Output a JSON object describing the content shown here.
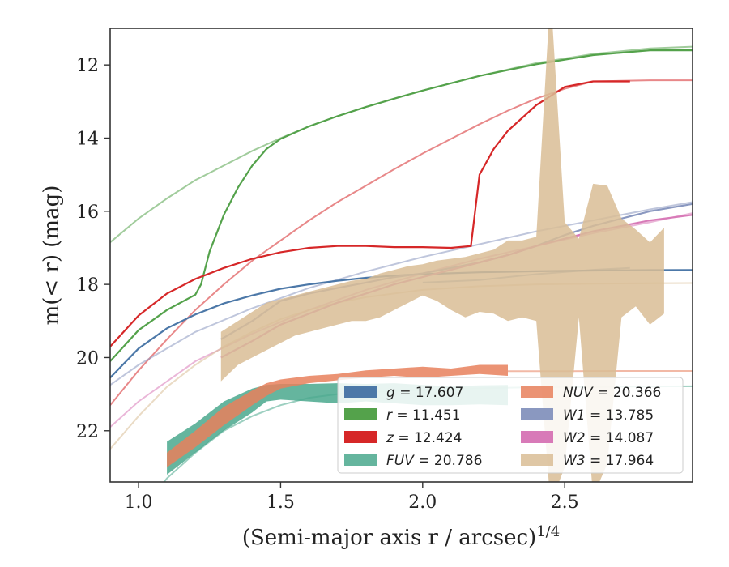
{
  "chart_data": {
    "type": "line",
    "xlabel": "(Semi-major axis r / arcsec)",
    "xlabel_power": "1/4",
    "ylabel": "m(< r) (mag)",
    "xlim": [
      0.9,
      2.95
    ],
    "ylim": [
      23.4,
      11.0
    ],
    "y_inverted": true,
    "x_ticks": [
      1.0,
      1.5,
      2.0,
      2.5
    ],
    "x_tick_labels": [
      "1.0",
      "1.5",
      "2.0",
      "2.5"
    ],
    "y_ticks": [
      12,
      14,
      16,
      18,
      20,
      22
    ],
    "y_tick_labels": [
      "12",
      "14",
      "16",
      "18",
      "20",
      "22"
    ],
    "legend_position": "lower-right",
    "grid": false,
    "series": [
      {
        "name": "g = 17.607",
        "legend_italic": "g",
        "legend_value": "17.607",
        "color": "#4c78a8",
        "kind": "line",
        "x": [
          0.9,
          1.0,
          1.1,
          1.2,
          1.3,
          1.4,
          1.5,
          1.6,
          1.7,
          1.8,
          1.9,
          2.0,
          2.2,
          2.4,
          2.6,
          2.8,
          2.95
        ],
        "y": [
          20.55,
          19.75,
          19.2,
          18.82,
          18.52,
          18.3,
          18.12,
          18.0,
          17.9,
          17.82,
          17.76,
          17.72,
          17.67,
          17.64,
          17.62,
          17.61,
          17.607
        ],
        "model_x": [
          2.0,
          2.2,
          2.4,
          2.6,
          2.73
        ],
        "model_y": [
          17.95,
          17.88,
          17.72,
          17.6,
          17.55
        ]
      },
      {
        "name": "r = 11.451",
        "legend_italic": "r",
        "legend_value": "11.451",
        "color": "#54a24b",
        "kind": "line",
        "x": [
          0.9,
          1.0,
          1.1,
          1.2,
          1.22,
          1.25,
          1.3,
          1.35,
          1.4,
          1.45,
          1.5,
          1.6,
          1.7,
          1.8,
          1.9,
          2.0,
          2.2,
          2.4,
          2.6,
          2.8,
          2.95
        ],
        "y": [
          20.1,
          19.25,
          18.7,
          18.28,
          18.0,
          17.1,
          16.1,
          15.35,
          14.75,
          14.3,
          14.02,
          13.68,
          13.4,
          13.15,
          12.92,
          12.7,
          12.3,
          11.98,
          11.73,
          11.6,
          11.6
        ],
        "model_x": [
          0.9,
          1.0,
          1.1,
          1.2,
          1.3,
          1.4,
          1.5,
          1.6,
          1.7,
          1.8,
          2.0,
          2.2,
          2.4,
          2.6,
          2.8,
          2.95
        ],
        "model_y": [
          16.85,
          16.2,
          15.65,
          15.15,
          14.75,
          14.35,
          14.0,
          13.68,
          13.4,
          13.15,
          12.7,
          12.3,
          11.95,
          11.7,
          11.55,
          11.5
        ]
      },
      {
        "name": "z = 12.424",
        "legend_italic": "z",
        "legend_value": "12.424",
        "color": "#d62728",
        "kind": "line",
        "x": [
          0.9,
          1.0,
          1.1,
          1.2,
          1.3,
          1.4,
          1.5,
          1.6,
          1.7,
          1.8,
          1.9,
          2.0,
          2.1,
          2.17,
          2.2,
          2.25,
          2.3,
          2.4,
          2.5,
          2.6,
          2.73
        ],
        "y": [
          19.7,
          18.85,
          18.25,
          17.85,
          17.55,
          17.3,
          17.12,
          17.0,
          16.95,
          16.95,
          16.98,
          16.98,
          17.0,
          16.95,
          15.0,
          14.3,
          13.8,
          13.1,
          12.6,
          12.45,
          12.45
        ],
        "model_x": [
          0.9,
          1.0,
          1.1,
          1.2,
          1.3,
          1.4,
          1.5,
          1.6,
          1.7,
          1.8,
          1.9,
          2.0,
          2.1,
          2.2,
          2.3,
          2.4,
          2.5,
          2.6,
          2.8,
          2.95
        ],
        "model_y": [
          21.3,
          20.35,
          19.5,
          18.7,
          18.0,
          17.35,
          16.8,
          16.25,
          15.75,
          15.3,
          14.85,
          14.42,
          14.02,
          13.62,
          13.25,
          12.92,
          12.65,
          12.45,
          12.42,
          12.42
        ]
      },
      {
        "name": "FUV = 20.786",
        "legend_italic": "FUV",
        "legend_value": "20.786",
        "color": "#4aa88d",
        "kind": "band",
        "x": [
          1.1,
          1.2,
          1.3,
          1.4,
          1.45,
          1.5,
          1.6,
          1.7,
          1.8,
          1.9,
          2.0,
          2.1,
          2.2,
          2.3
        ],
        "y_low": [
          22.3,
          21.8,
          21.2,
          20.85,
          20.75,
          20.72,
          20.72,
          20.7,
          20.72,
          20.7,
          20.75,
          20.78,
          20.76,
          20.75
        ],
        "y_high": [
          23.2,
          22.6,
          22.0,
          21.5,
          21.2,
          21.15,
          21.2,
          21.25,
          21.2,
          21.25,
          21.3,
          21.3,
          21.28,
          21.3
        ],
        "model_x": [
          0.9,
          1.0,
          1.1,
          1.2,
          1.3,
          1.4,
          1.5,
          1.6,
          1.7,
          1.8,
          2.0,
          2.2,
          2.4,
          2.6,
          2.8,
          2.95
        ],
        "model_y": [
          25.5,
          24.3,
          23.3,
          22.6,
          22.0,
          21.6,
          21.3,
          21.1,
          21.0,
          20.95,
          20.88,
          20.84,
          20.81,
          20.8,
          20.79,
          20.786
        ]
      },
      {
        "name": "NUV = 20.366",
        "legend_italic": "NUV",
        "legend_value": "20.366",
        "color": "#e8805c",
        "kind": "band",
        "x": [
          1.1,
          1.2,
          1.3,
          1.4,
          1.45,
          1.5,
          1.6,
          1.7,
          1.8,
          1.9,
          2.0,
          2.1,
          2.2,
          2.3
        ],
        "y_low": [
          22.6,
          22.0,
          21.35,
          20.9,
          20.7,
          20.6,
          20.5,
          20.45,
          20.35,
          20.3,
          20.25,
          20.3,
          20.2,
          20.2
        ],
        "y_high": [
          23.0,
          22.45,
          21.85,
          21.3,
          21.05,
          20.85,
          20.7,
          20.62,
          20.55,
          20.5,
          20.55,
          20.5,
          20.45,
          20.5
        ],
        "model_x": [
          2.3,
          2.5,
          2.7,
          2.95
        ],
        "model_y": [
          20.37,
          20.37,
          20.366,
          20.366
        ]
      },
      {
        "name": "W1 = 13.785",
        "legend_italic": "W1",
        "legend_value": "13.785",
        "color": "#8a98c0",
        "kind": "line",
        "x": [
          1.29,
          1.4,
          1.5,
          1.6,
          1.7,
          1.8,
          1.9,
          2.0,
          2.1,
          2.2,
          2.3,
          2.4,
          2.5,
          2.6,
          2.7,
          2.8,
          2.95
        ],
        "y": [
          19.5,
          19.0,
          18.45,
          18.25,
          18.1,
          17.95,
          17.8,
          17.7,
          17.55,
          17.4,
          17.2,
          16.95,
          16.65,
          16.4,
          16.2,
          16.0,
          15.8
        ],
        "model_x": [
          0.9,
          1.0,
          1.2,
          1.4,
          1.6,
          1.8,
          2.0,
          2.2,
          2.4,
          2.6,
          2.8,
          2.95
        ],
        "model_y": [
          20.75,
          20.2,
          19.3,
          18.65,
          18.1,
          17.65,
          17.25,
          16.9,
          16.55,
          16.25,
          15.95,
          15.75
        ]
      },
      {
        "name": "W2 = 14.087",
        "legend_italic": "W2",
        "legend_value": "14.087",
        "color": "#d87ab8",
        "kind": "line",
        "x": [
          1.29,
          1.4,
          1.5,
          1.6,
          1.7,
          1.8,
          1.9,
          2.0,
          2.1,
          2.2,
          2.3,
          2.4,
          2.5,
          2.6,
          2.7,
          2.8,
          2.95
        ],
        "y": [
          20.0,
          19.55,
          19.1,
          18.8,
          18.5,
          18.25,
          18.0,
          17.8,
          17.6,
          17.4,
          17.2,
          16.95,
          16.75,
          16.55,
          16.4,
          16.25,
          16.1
        ],
        "model_x": [
          0.9,
          1.0,
          1.2,
          1.4,
          1.6,
          1.8,
          2.0,
          2.2,
          2.4,
          2.6,
          2.8,
          2.95
        ],
        "model_y": [
          21.9,
          21.2,
          20.1,
          19.35,
          18.7,
          18.15,
          17.7,
          17.3,
          16.95,
          16.6,
          16.3,
          16.05
        ]
      },
      {
        "name": "W3 = 17.964",
        "legend_italic": "W3",
        "legend_value": "17.964",
        "color": "#d9bd95",
        "kind": "band",
        "x": [
          1.29,
          1.35,
          1.45,
          1.55,
          1.65,
          1.75,
          1.8,
          1.85,
          1.9,
          1.95,
          2.0,
          2.05,
          2.1,
          2.15,
          2.2,
          2.25,
          2.3,
          2.35,
          2.4,
          2.45,
          2.5,
          2.55,
          2.6,
          2.65,
          2.7,
          2.75,
          2.8,
          2.85
        ],
        "y_low": [
          20.65,
          20.2,
          19.8,
          19.4,
          19.2,
          19.0,
          19.0,
          18.9,
          18.7,
          18.5,
          18.3,
          18.45,
          18.7,
          18.9,
          18.75,
          18.8,
          19.0,
          18.9,
          19.0,
          24.0,
          23.0,
          18.9,
          23.8,
          22.9,
          18.9,
          18.6,
          19.1,
          18.8
        ],
        "y_high": [
          19.3,
          19.0,
          18.5,
          18.3,
          18.1,
          17.9,
          17.85,
          17.7,
          17.6,
          17.5,
          17.45,
          17.35,
          17.3,
          17.25,
          17.15,
          17.05,
          16.8,
          16.8,
          16.7,
          10.0,
          16.3,
          16.75,
          15.25,
          15.3,
          16.2,
          16.5,
          16.85,
          16.45
        ],
        "model_x": [
          0.9,
          1.0,
          1.1,
          1.2,
          1.3,
          1.4,
          1.5,
          1.6,
          1.7,
          1.8,
          2.0,
          2.2,
          2.4,
          2.6,
          2.8,
          2.95
        ],
        "model_y": [
          22.5,
          21.6,
          20.8,
          20.2,
          19.7,
          19.3,
          18.95,
          18.7,
          18.5,
          18.35,
          18.15,
          18.05,
          18.0,
          17.98,
          17.97,
          17.964
        ]
      }
    ]
  }
}
